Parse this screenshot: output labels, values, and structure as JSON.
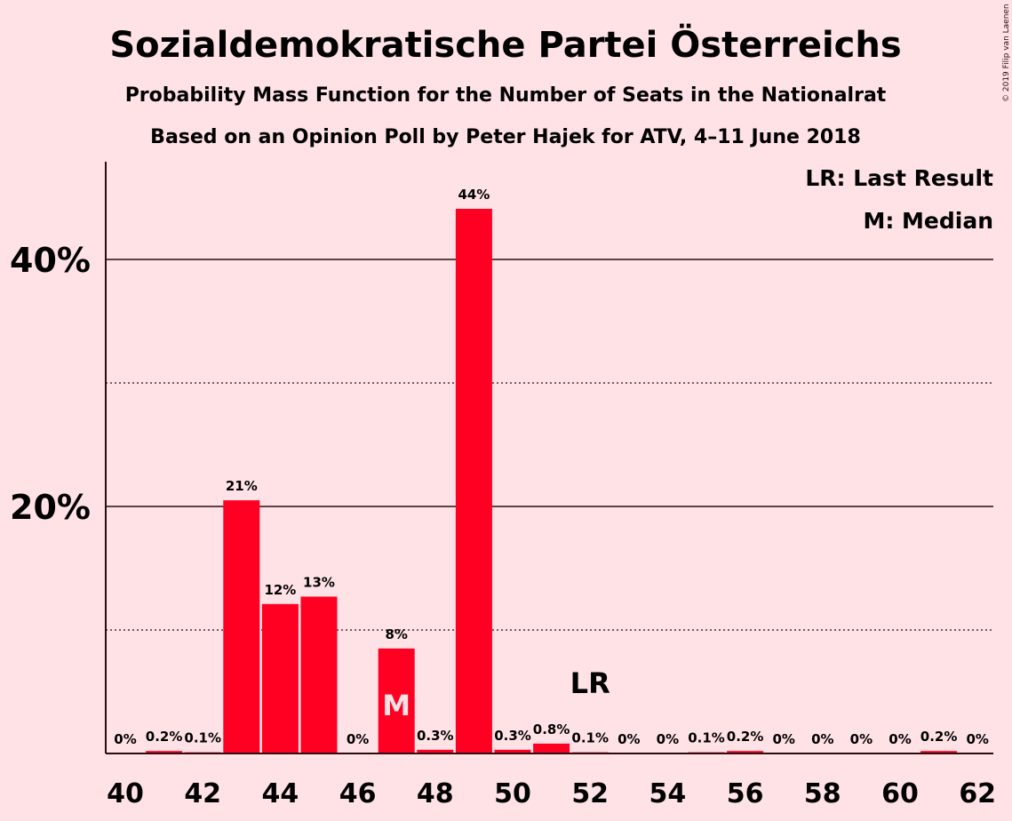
{
  "chart_data": {
    "type": "bar",
    "title": "Sozialdemokratische Partei Österreichs",
    "subtitle": "Probability Mass Function for the Number of Seats in the Nationalrat",
    "subtitle2": "Based on an Opinion Poll by Peter Hajek for ATV, 4–11 June 2018",
    "copyright": "© 2019 Filip van Laenen",
    "legend": [
      "LR: Last Result",
      "M: Median"
    ],
    "legend_position": "top-right",
    "categories": [
      40,
      41,
      42,
      43,
      44,
      45,
      46,
      47,
      48,
      49,
      50,
      51,
      52,
      53,
      54,
      55,
      56,
      57,
      58,
      59,
      60,
      61,
      62
    ],
    "values": [
      0,
      0.2,
      0.1,
      20.5,
      12.1,
      12.7,
      0,
      8.5,
      0.3,
      44.1,
      0.3,
      0.8,
      0.1,
      0,
      0,
      0.1,
      0.2,
      0,
      0,
      0,
      0,
      0.2,
      0
    ],
    "labels": [
      "0%",
      "0.2%",
      "0.1%",
      "21%",
      "12%",
      "13%",
      "0%",
      "8%",
      "0.3%",
      "44%",
      "0.3%",
      "0.8%",
      "0.1%",
      "0%",
      "0%",
      "0.1%",
      "0.2%",
      "0%",
      "0%",
      "0%",
      "0%",
      "0.2%",
      "0%"
    ],
    "x_tick_labels": [
      "40",
      "42",
      "44",
      "46",
      "48",
      "50",
      "52",
      "54",
      "56",
      "58",
      "60",
      "62"
    ],
    "y_ticks": [
      {
        "value": 10,
        "label": "",
        "style": "dotted"
      },
      {
        "value": 20,
        "label": "20%",
        "style": "solid"
      },
      {
        "value": 30,
        "label": "",
        "style": "dotted"
      },
      {
        "value": 40,
        "label": "40%",
        "style": "solid"
      }
    ],
    "ylim": [
      0,
      48
    ],
    "median_seat": 47,
    "median_marker": "M",
    "last_result_seat": 52,
    "last_result_marker": "LR",
    "colors": {
      "bar": "#FF0022",
      "background": "#FFE2E6",
      "text": "#2B0A10"
    }
  }
}
